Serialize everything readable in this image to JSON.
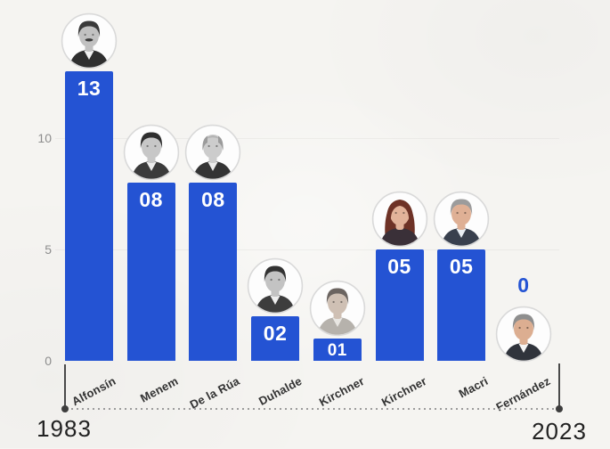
{
  "chart_data": {
    "type": "bar",
    "title": "",
    "xlabel": "",
    "ylabel": "",
    "categories": [
      "Alfonsín",
      "Menem",
      "De la Rúa",
      "Duhalde",
      "Kirchner",
      "Kirchner",
      "Macri",
      "Fernández"
    ],
    "values": [
      13,
      8,
      8,
      2,
      1,
      5,
      5,
      0
    ],
    "value_labels": [
      "13",
      "08",
      "08",
      "02",
      "01",
      "05",
      "05",
      "0"
    ],
    "ylim": [
      0,
      13
    ],
    "yticks": [
      "0",
      "5",
      "10"
    ],
    "ytick_values": [
      0,
      5,
      10
    ],
    "legend": "none",
    "grid": "very faint horizontal lines",
    "timeline": {
      "start": "1983",
      "end": "2023"
    },
    "colors": {
      "bar": "#2453d3",
      "value_text": "#ffffff",
      "zero_value_text": "#2453d3",
      "tick_text": "#8d8d8d",
      "name_text": "#333333",
      "timeline_line": "#4a4a4a",
      "background": "#f5f4f1"
    },
    "avatars": [
      {
        "name": "portrait-alfonsin",
        "style": "grayscale",
        "hairstyle": "short",
        "mustache": true,
        "skin": "#c1c1c1",
        "hair": "#3a3a3a",
        "suit": "#2f2f2f",
        "shirt": "#f2f2f2"
      },
      {
        "name": "portrait-menem",
        "style": "grayscale",
        "hairstyle": "short",
        "mustache": false,
        "skin": "#c7c7c7",
        "hair": "#2e2e2e",
        "suit": "#3b3b3b",
        "shirt": "#ededed"
      },
      {
        "name": "portrait-delarua",
        "style": "grayscale",
        "hairstyle": "balding",
        "mustache": false,
        "skin": "#cccccc",
        "hair": "#9b9b9b",
        "suit": "#343434",
        "shirt": "#ececec"
      },
      {
        "name": "portrait-duhalde",
        "style": "grayscale",
        "hairstyle": "short",
        "mustache": false,
        "skin": "#c3c3c3",
        "hair": "#323232",
        "suit": "#3d3d3d",
        "shirt": "#eeeeee"
      },
      {
        "name": "portrait-nkirchner",
        "style": "muted-color",
        "hairstyle": "short",
        "mustache": false,
        "skin": "#cfc0b4",
        "hair": "#6b6460",
        "suit": "#b6b2ac",
        "shirt": "#e8e6e2"
      },
      {
        "name": "portrait-ckirchner",
        "style": "color",
        "hairstyle": "long",
        "mustache": false,
        "skin": "#e3b39a",
        "hair": "#6e3226",
        "suit": "#3a3038",
        "shirt": "#3a3038"
      },
      {
        "name": "portrait-macri",
        "style": "color",
        "hairstyle": "short",
        "mustache": false,
        "skin": "#dfb095",
        "hair": "#9c9c9c",
        "suit": "#39404e",
        "shirt": "#e9eef4"
      },
      {
        "name": "portrait-fernandez",
        "style": "color",
        "hairstyle": "short",
        "mustache": false,
        "skin": "#dcae91",
        "hair": "#8e8e8e",
        "suit": "#30343c",
        "shirt": "#f4f4f4"
      }
    ]
  }
}
